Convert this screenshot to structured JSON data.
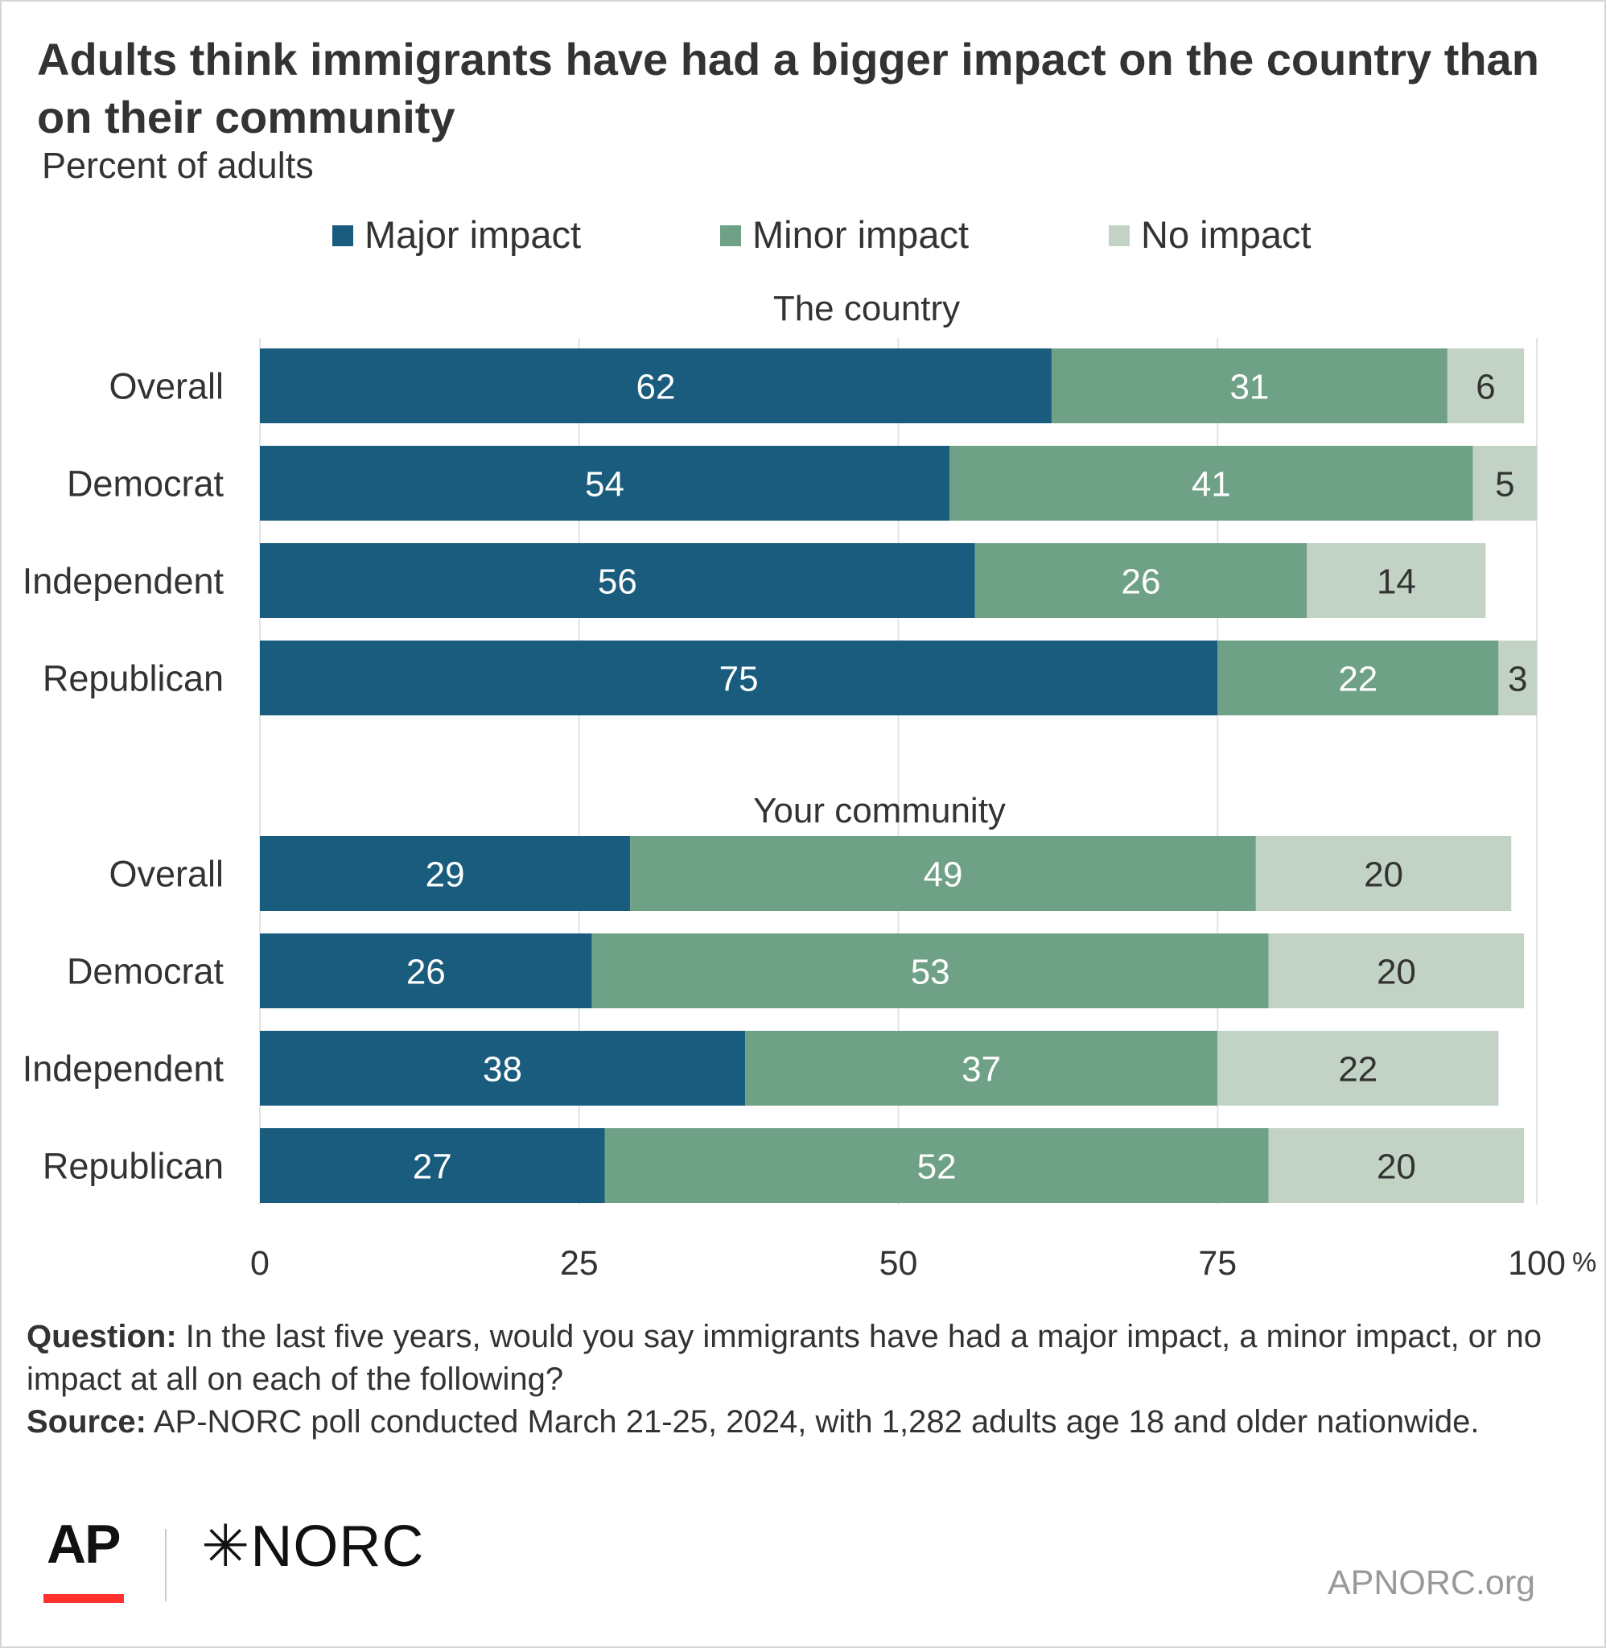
{
  "title": "Adults think immigrants have had a bigger impact on the country than on their community",
  "subtitle": "Percent of adults",
  "footer": {
    "question_label": "Question:",
    "question_text": " In the last five years, would you say immigrants have had a major impact, a minor impact, or no impact at all on each of the following?",
    "source_label": "Source:",
    "source_text": " AP-NORC poll conducted March 21-25, 2024, with 1,282 adults age 18 and older nationwide.",
    "logo_ap": "AP",
    "logo_norc": "✳NORC",
    "url": "APNORC.org"
  },
  "chart_data": {
    "type": "bar",
    "orientation": "horizontal",
    "stacked": true,
    "series_names": [
      "Major impact",
      "Minor impact",
      "No impact"
    ],
    "colors": [
      "#1a5c7d",
      "#6fa187",
      "#c2d3c5"
    ],
    "label_colors": [
      "#ffffff",
      "#ffffff",
      "#333333"
    ],
    "legend_position": "top",
    "xlim": [
      0,
      100
    ],
    "x_ticks": [
      0,
      25,
      50,
      75,
      100
    ],
    "x_tick_labels": [
      "0",
      "25",
      "50",
      "75",
      "100"
    ],
    "x_unit": "%",
    "grid": true,
    "groups": [
      {
        "title": "The country",
        "categories": [
          "Overall",
          "Democrat",
          "Independent",
          "Republican"
        ],
        "values": [
          [
            62,
            31,
            6
          ],
          [
            54,
            41,
            5
          ],
          [
            56,
            26,
            14
          ],
          [
            75,
            22,
            3
          ]
        ]
      },
      {
        "title": "Your community",
        "categories": [
          "Overall",
          "Democrat",
          "Independent",
          "Republican"
        ],
        "values": [
          [
            29,
            49,
            20
          ],
          [
            26,
            53,
            20
          ],
          [
            38,
            37,
            22
          ],
          [
            27,
            52,
            20
          ]
        ]
      }
    ]
  }
}
